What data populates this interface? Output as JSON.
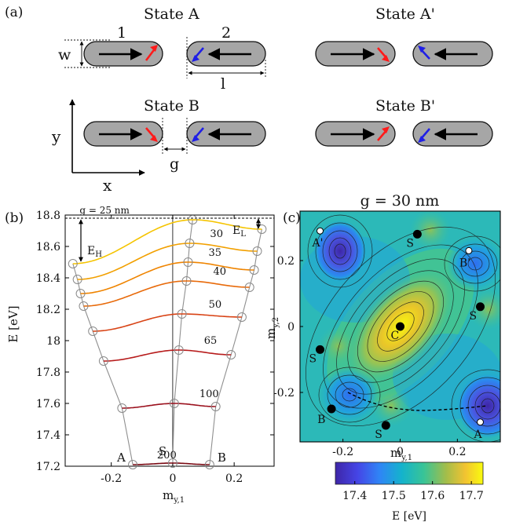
{
  "panel_a": {
    "label": "(a)",
    "state_a": "State A",
    "state_a_prime": "State A'",
    "state_b": "State B",
    "state_b_prime": "State B'",
    "magnet_1": "1",
    "magnet_2": "2",
    "width_label": "w",
    "length_label": "l",
    "gap_label": "g",
    "axis_y": "y",
    "axis_x": "x",
    "colors": {
      "magnet_fill": "#a6a6a6",
      "left_spin": "#ff1a1a",
      "right_spin": "#1f1fe6",
      "core_arrow": "#000000"
    }
  },
  "panel_b": {
    "label": "(b)",
    "ylabel": "E [eV]",
    "xlabel": "m",
    "xlabel_sub": "y,1",
    "eh_label": "E",
    "eh_sub": "H",
    "el_label": "E",
    "el_sub": "L",
    "label_a": "A",
    "label_s": "S",
    "label_b": "B",
    "chart_data": {
      "type": "line",
      "xlim": [
        -0.35,
        0.33
      ],
      "ylim": [
        17.2,
        18.8
      ],
      "xticks": [
        -0.2,
        0,
        0.2
      ],
      "xtick_labels": [
        "-0.2",
        "0",
        "0.2"
      ],
      "yticks": [
        17.2,
        17.4,
        17.6,
        17.8,
        18,
        18.2,
        18.4,
        18.6,
        18.8
      ],
      "ytick_labels": [
        "17.2",
        "17.4",
        "17.6",
        "17.8",
        "18",
        "18.2",
        "18.4",
        "18.6",
        "18.8"
      ],
      "series": [
        {
          "name": "g = 25 nm",
          "color": "#f5c400",
          "a": [
            -0.325,
            18.49
          ],
          "s": [
            0.065,
            18.77
          ],
          "b": [
            0.29,
            18.71
          ]
        },
        {
          "name": "30",
          "color": "#f2a000",
          "a": [
            -0.31,
            18.39
          ],
          "s": [
            0.055,
            18.62
          ],
          "b": [
            0.275,
            18.57
          ]
        },
        {
          "name": "35",
          "color": "#ef8400",
          "a": [
            -0.3,
            18.3
          ],
          "s": [
            0.05,
            18.5
          ],
          "b": [
            0.265,
            18.45
          ]
        },
        {
          "name": "40",
          "color": "#e86a0a",
          "a": [
            -0.29,
            18.22
          ],
          "s": [
            0.045,
            18.38
          ],
          "b": [
            0.25,
            18.34
          ]
        },
        {
          "name": "50",
          "color": "#d84315",
          "a": [
            -0.26,
            18.06
          ],
          "s": [
            0.03,
            18.17
          ],
          "b": [
            0.225,
            18.15
          ]
        },
        {
          "name": "65",
          "color": "#b71c1c",
          "a": [
            -0.225,
            17.87
          ],
          "s": [
            0.02,
            17.94
          ],
          "b": [
            0.19,
            17.91
          ]
        },
        {
          "name": "100",
          "color": "#9b111e",
          "a": [
            -0.165,
            17.57
          ],
          "s": [
            0.005,
            17.6
          ],
          "b": [
            0.14,
            17.58
          ]
        },
        {
          "name": "200",
          "color": "#7a0a14",
          "a": [
            -0.13,
            17.21
          ],
          "s": [
            0.0,
            17.22
          ],
          "b": [
            0.12,
            17.21
          ]
        }
      ],
      "top_reference_energy": 18.78
    }
  },
  "panel_c": {
    "label": "(c)",
    "title": "g = 30 nm",
    "xlabel": "m",
    "xlabel_sub": "y,1",
    "ylabel": "m",
    "ylabel_sub": "y,2",
    "colorbar_label": "E [eV]",
    "chart_data": {
      "type": "heatmap",
      "xlim": [
        -0.35,
        0.35
      ],
      "ylim": [
        -0.35,
        0.35
      ],
      "xticks": [
        -0.2,
        0,
        0.2
      ],
      "xtick_labels": [
        "-0.2",
        "0",
        "0.2"
      ],
      "yticks": [
        -0.2,
        0,
        0.2
      ],
      "ytick_labels": [
        "-0.2",
        "0",
        "0.2"
      ],
      "colorbar_ticks": [
        17.4,
        17.5,
        17.6,
        17.7
      ],
      "colorbar_tick_labels": [
        "17.4",
        "17.5",
        "17.6",
        "17.7"
      ],
      "colorbar_range": [
        17.35,
        17.73
      ],
      "points": [
        {
          "label": "A",
          "x": 0.28,
          "y": -0.29,
          "marker": "white"
        },
        {
          "label": "A'",
          "x": -0.28,
          "y": 0.29,
          "marker": "white"
        },
        {
          "label": "B",
          "x": -0.24,
          "y": -0.25,
          "marker": "black"
        },
        {
          "label": "B'",
          "x": 0.24,
          "y": 0.23,
          "marker": "white"
        },
        {
          "label": "C",
          "x": 0.0,
          "y": 0.0,
          "marker": "black"
        },
        {
          "label": "S",
          "x": -0.05,
          "y": -0.3,
          "marker": "black"
        },
        {
          "label": "S",
          "x": 0.06,
          "y": 0.28,
          "marker": "black"
        },
        {
          "label": "S",
          "x": -0.28,
          "y": -0.07,
          "marker": "black"
        },
        {
          "label": "S",
          "x": 0.28,
          "y": 0.06,
          "marker": "black"
        }
      ]
    }
  }
}
